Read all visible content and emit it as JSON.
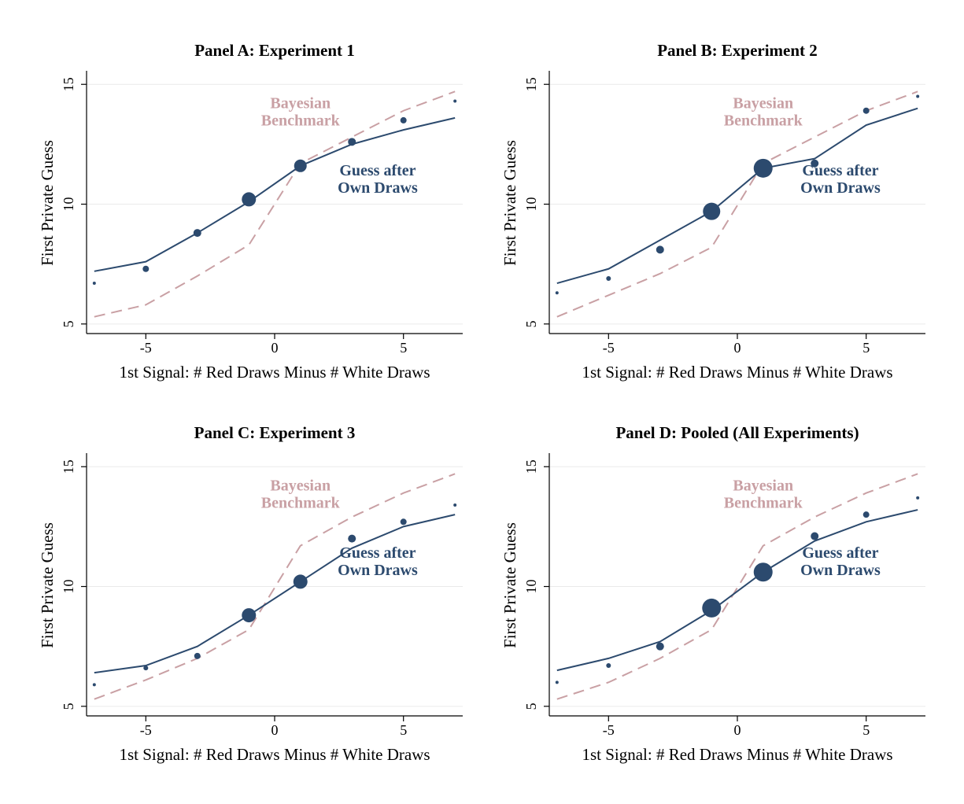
{
  "colors": {
    "guess": "#2c4a6e",
    "bayesian": "#c9a0a4",
    "grid": "#eaeaea",
    "axis": "#000000"
  },
  "chart_data": [
    {
      "type": "line",
      "title": "Panel A: Experiment 1",
      "xlabel": "1st Signal: # Red Draws Minus # White Draws",
      "ylabel": "First Private Guess",
      "xlim": [
        -7.3,
        7.3
      ],
      "ylim": [
        4.6,
        15.5
      ],
      "xticks": [
        -5,
        0,
        5
      ],
      "yticks": [
        5,
        10,
        15
      ],
      "grid": true,
      "annotations": [
        {
          "text": [
            "Bayesian",
            "Benchmark"
          ],
          "x": 1,
          "y": 14.0,
          "color": "bayesian"
        },
        {
          "text": [
            "Guess after",
            "Own Draws"
          ],
          "x": 4,
          "y": 11.2,
          "color": "guess"
        }
      ],
      "bayesian": {
        "x": [
          -7,
          -5,
          -3,
          -1,
          1,
          3,
          5,
          7
        ],
        "y": [
          5.3,
          5.8,
          7.0,
          8.3,
          11.7,
          12.8,
          13.9,
          14.7
        ]
      },
      "guess_line": {
        "x": [
          -7,
          -5,
          -3,
          -1,
          1,
          3,
          5,
          7
        ],
        "y": [
          7.2,
          7.6,
          8.8,
          10.1,
          11.6,
          12.5,
          13.1,
          13.6
        ]
      },
      "guess_points": {
        "x": [
          -7,
          -5,
          -3,
          -1,
          1,
          3,
          5,
          7
        ],
        "y": [
          6.7,
          7.3,
          8.8,
          10.2,
          11.6,
          12.6,
          13.5,
          14.3
        ],
        "size": [
          2,
          4,
          5,
          9,
          8,
          5,
          4,
          2
        ]
      }
    },
    {
      "type": "line",
      "title": "Panel B: Experiment 2",
      "xlabel": "1st Signal: # Red Draws Minus # White Draws",
      "ylabel": "First Private Guess",
      "xlim": [
        -7.3,
        7.3
      ],
      "ylim": [
        4.6,
        15.5
      ],
      "xticks": [
        -5,
        0,
        5
      ],
      "yticks": [
        5,
        10,
        15
      ],
      "grid": true,
      "annotations": [
        {
          "text": [
            "Bayesian",
            "Benchmark"
          ],
          "x": 1,
          "y": 14.0,
          "color": "bayesian"
        },
        {
          "text": [
            "Guess after",
            "Own Draws"
          ],
          "x": 4,
          "y": 11.2,
          "color": "guess"
        }
      ],
      "bayesian": {
        "x": [
          -7,
          -5,
          -3,
          -1,
          1,
          3,
          5,
          7
        ],
        "y": [
          5.3,
          6.2,
          7.1,
          8.2,
          11.7,
          12.8,
          13.9,
          14.7
        ]
      },
      "guess_line": {
        "x": [
          -7,
          -5,
          -3,
          -1,
          1,
          3,
          5,
          7
        ],
        "y": [
          6.7,
          7.3,
          8.5,
          9.7,
          11.5,
          11.9,
          13.3,
          14.0
        ]
      },
      "guess_points": {
        "x": [
          -7,
          -5,
          -3,
          -1,
          1,
          3,
          5,
          7
        ],
        "y": [
          6.3,
          6.9,
          8.1,
          9.7,
          11.5,
          11.7,
          13.9,
          14.5
        ],
        "size": [
          2,
          3,
          5,
          11,
          12,
          5,
          4,
          2
        ]
      }
    },
    {
      "type": "line",
      "title": "Panel C: Experiment 3",
      "xlabel": "1st Signal: # Red Draws Minus # White Draws",
      "ylabel": "First Private Guess",
      "xlim": [
        -7.3,
        7.3
      ],
      "ylim": [
        4.6,
        15.5
      ],
      "xticks": [
        -5,
        0,
        5
      ],
      "yticks": [
        5,
        10,
        15
      ],
      "grid": true,
      "annotations": [
        {
          "text": [
            "Bayesian",
            "Benchmark"
          ],
          "x": 1,
          "y": 14.0,
          "color": "bayesian"
        },
        {
          "text": [
            "Guess after",
            "Own Draws"
          ],
          "x": 4,
          "y": 11.2,
          "color": "guess"
        }
      ],
      "bayesian": {
        "x": [
          -7,
          -5,
          -3,
          -1,
          1,
          3,
          5,
          7
        ],
        "y": [
          5.3,
          6.1,
          7.0,
          8.2,
          11.7,
          12.9,
          13.9,
          14.7
        ]
      },
      "guess_line": {
        "x": [
          -7,
          -5,
          -3,
          -1,
          1,
          3,
          5,
          7
        ],
        "y": [
          6.4,
          6.7,
          7.5,
          8.8,
          10.2,
          11.6,
          12.5,
          13.0
        ]
      },
      "guess_points": {
        "x": [
          -7,
          -5,
          -3,
          -1,
          1,
          3,
          5,
          7
        ],
        "y": [
          5.9,
          6.6,
          7.1,
          8.8,
          10.2,
          12.0,
          12.7,
          13.4
        ],
        "size": [
          2,
          3,
          4,
          9,
          9,
          5,
          4,
          2
        ]
      }
    },
    {
      "type": "line",
      "title": "Panel D: Pooled (All Experiments)",
      "xlabel": "1st Signal: # Red Draws Minus # White Draws",
      "ylabel": "First Private Guess",
      "xlim": [
        -7.3,
        7.3
      ],
      "ylim": [
        4.6,
        15.5
      ],
      "xticks": [
        -5,
        0,
        5
      ],
      "yticks": [
        5,
        10,
        15
      ],
      "grid": true,
      "annotations": [
        {
          "text": [
            "Bayesian",
            "Benchmark"
          ],
          "x": 1,
          "y": 14.0,
          "color": "bayesian"
        },
        {
          "text": [
            "Guess after",
            "Own Draws"
          ],
          "x": 4,
          "y": 11.2,
          "color": "guess"
        }
      ],
      "bayesian": {
        "x": [
          -7,
          -5,
          -3,
          -1,
          1,
          3,
          5,
          7
        ],
        "y": [
          5.3,
          6.0,
          7.0,
          8.2,
          11.7,
          12.9,
          13.9,
          14.7
        ]
      },
      "guess_line": {
        "x": [
          -7,
          -5,
          -3,
          -1,
          1,
          3,
          5,
          7
        ],
        "y": [
          6.5,
          7.0,
          7.7,
          9.0,
          10.6,
          11.9,
          12.7,
          13.2
        ]
      },
      "guess_points": {
        "x": [
          -7,
          -5,
          -3,
          -1,
          1,
          3,
          5,
          7
        ],
        "y": [
          6.0,
          6.7,
          7.5,
          9.1,
          10.6,
          12.1,
          13.0,
          13.7
        ],
        "size": [
          2,
          3,
          5,
          12,
          12,
          5,
          4,
          2
        ]
      }
    }
  ]
}
